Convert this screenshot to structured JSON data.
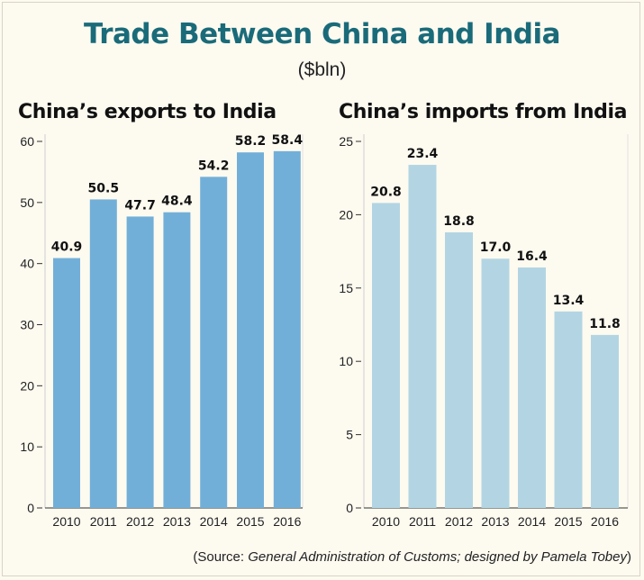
{
  "title": "Trade Between China and India",
  "subtitle": "($bln)",
  "source": {
    "prefix": "(Source: ",
    "org": "General Administration of Customs; designed by Pamela Tobey",
    "suffix": ")"
  },
  "colors": {
    "exports_bar": "#72afd8",
    "imports_bar": "#b3d5e3",
    "title": "#1a6b7a"
  },
  "chart_data": [
    {
      "type": "bar",
      "title": "China’s exports to India",
      "categories": [
        "2010",
        "2011",
        "2012",
        "2013",
        "2014",
        "2015",
        "2016"
      ],
      "values": [
        40.9,
        50.5,
        47.7,
        48.4,
        54.2,
        58.2,
        58.4
      ],
      "value_labels": [
        "40.9",
        "50.5",
        "47.7",
        "48.4",
        "54.2",
        "58.2",
        "58.4"
      ],
      "yticks": [
        0,
        10,
        20,
        30,
        40,
        50,
        60
      ],
      "ylim": [
        0,
        60
      ],
      "grid": false
    },
    {
      "type": "bar",
      "title": "China’s imports from India",
      "categories": [
        "2010",
        "2011",
        "2012",
        "2013",
        "2014",
        "2015",
        "2016"
      ],
      "values": [
        20.8,
        23.4,
        18.8,
        17.0,
        16.4,
        13.4,
        11.8
      ],
      "value_labels": [
        "20.8",
        "23.4",
        "18.8",
        "17.0",
        "16.4",
        "13.4",
        "11.8"
      ],
      "yticks": [
        0,
        5,
        10,
        15,
        20,
        25
      ],
      "ylim": [
        0,
        25
      ],
      "grid": false
    }
  ]
}
